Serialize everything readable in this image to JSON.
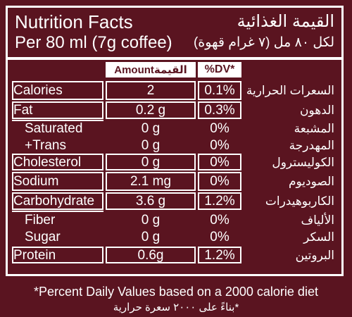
{
  "header": {
    "title_en": "Nutrition Facts",
    "title_ar": "القيمة الغذائية",
    "serving_en": "Per 80 ml (7g coffee)",
    "serving_ar": "لكل ٨٠ مل (٧ غرام قهوة)"
  },
  "columns": {
    "amount_en": "Amount",
    "amount_ar": "القيمة",
    "dv": "%DV*"
  },
  "rows": [
    {
      "en": "Calories",
      "amount": "2",
      "dv": "0.1%",
      "ar": "السعرات الحرارية"
    },
    {
      "en": "Fat",
      "amount": "0.2 g",
      "dv": "0.3%",
      "ar": "الدهون"
    },
    {
      "en": "Saturated",
      "amount": "0 g",
      "dv": "0%",
      "ar": "المشبعة"
    },
    {
      "en": "+Trans",
      "amount": "0 g",
      "dv": "0%",
      "ar": "المهدرجة"
    },
    {
      "en": "Cholesterol",
      "amount": "0 g",
      "dv": "0%",
      "ar": "الكوليسترول"
    },
    {
      "en": "Sodium",
      "amount": "2.1 mg",
      "dv": "0%",
      "ar": "الصوديوم"
    },
    {
      "en": "Carbohydrate",
      "amount": "3.6 g",
      "dv": "1.2%",
      "ar": "الكاربوهيدرات"
    },
    {
      "en": "Fiber",
      "amount": "0 g",
      "dv": "0%",
      "ar": "الألياف"
    },
    {
      "en": "Sugar",
      "amount": "0 g",
      "dv": "0%",
      "ar": "السكر"
    },
    {
      "en": "Protein",
      "amount": "0.6g",
      "dv": "1.2%",
      "ar": "البروتين"
    }
  ],
  "footnote": {
    "en": "*Percent Daily Values based on a 2000 calorie diet",
    "ar": "*بناءً على ٢٠٠٠ سعرة حرارية"
  },
  "colors": {
    "background": "#5a1420",
    "text": "#ffffff"
  }
}
